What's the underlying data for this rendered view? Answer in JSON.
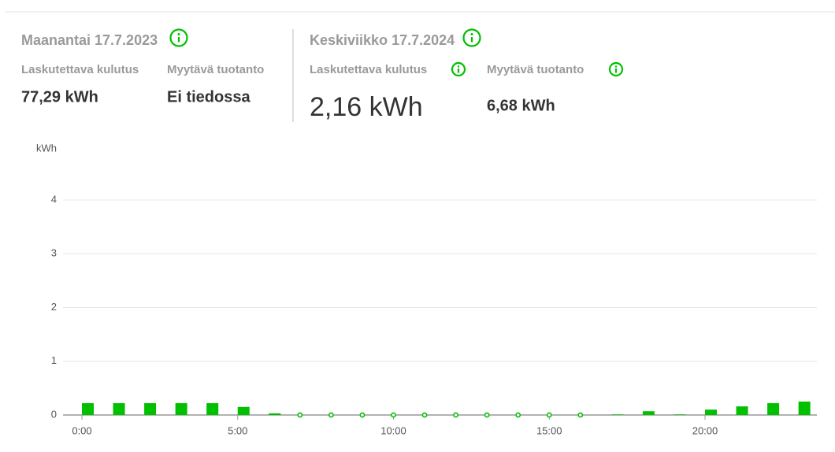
{
  "left": {
    "date": "Maanantai 17.7.2023",
    "consumption_label": "Laskutettava kulutus",
    "consumption": "77,29 kWh",
    "production_label": "Myytävä tuotanto",
    "production": "Ei tiedossa"
  },
  "right": {
    "date": "Keskiviikko 17.7.2024",
    "consumption_label": "Laskutettava kulutus",
    "consumption": "2,16 kWh",
    "production_label": "Myytävä tuotanto",
    "production": "6,68 kWh"
  },
  "chart_data": {
    "type": "bar",
    "y_label": "kWh",
    "categories": [
      "0:00",
      null,
      null,
      null,
      null,
      "5:00",
      null,
      null,
      null,
      null,
      "10:00",
      null,
      null,
      null,
      null,
      "15:00",
      null,
      null,
      null,
      null,
      "20:00",
      null,
      null,
      null
    ],
    "values": [
      0.22,
      0.22,
      0.22,
      0.22,
      0.22,
      0.15,
      0.03,
      0,
      0,
      0,
      0,
      0,
      0,
      0,
      0,
      0,
      0,
      0.01,
      0.07,
      0.01,
      0.1,
      0.16,
      0.22,
      0.25
    ],
    "color": "#00c000",
    "ylim": [
      0,
      4
    ],
    "yticks": [
      0,
      1,
      2,
      3,
      4
    ],
    "grid": true
  }
}
